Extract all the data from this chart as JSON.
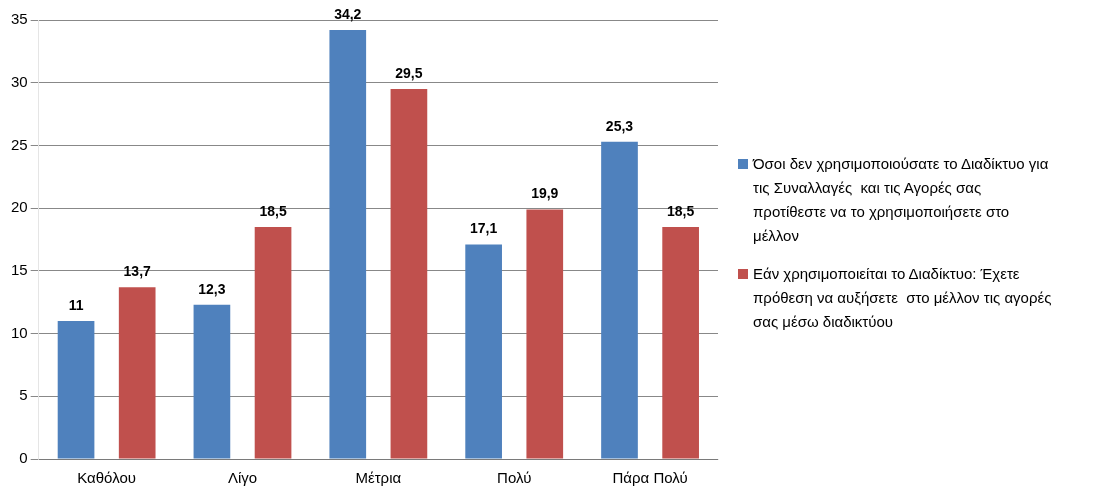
{
  "chart_data": {
    "type": "bar",
    "categories": [
      "Καθόλου",
      "Λίγο",
      "Μέτρια",
      "Πολύ",
      "Πάρα Πολύ"
    ],
    "series": [
      {
        "name": "Όσοι δεν χρησιμοποιούσατε το Διαδίκτυο για τις Συναλλαγές  και τις Αγορές σας προτίθεστε να το χρησιμοποιήσετε στο μέλλον",
        "color": "#4f81bd",
        "values": [
          11,
          12.3,
          34.2,
          17.1,
          25.3
        ],
        "value_labels": [
          "11",
          "12,3",
          "34,2",
          "17,1",
          "25,3"
        ]
      },
      {
        "name": "Εάν χρησιμοποιείται το Διαδίκτυο: Έχετε πρόθεση να αυξήσετε  στο μέλλον τις αγορές σας μέσω διαδικτύου",
        "color": "#c0504d",
        "values": [
          13.7,
          18.5,
          29.5,
          19.9,
          18.5
        ],
        "value_labels": [
          "13,7",
          "18,5",
          "29,5",
          "19,9",
          "18,5"
        ]
      }
    ],
    "ylim": [
      0,
      35
    ],
    "yticks": [
      0,
      5,
      10,
      15,
      20,
      25,
      30,
      35
    ],
    "grid": "y",
    "legend": "right"
  }
}
